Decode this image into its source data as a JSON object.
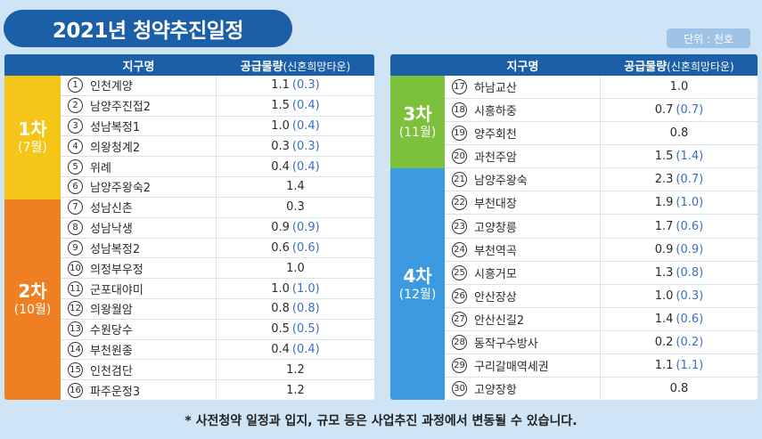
{
  "title": "2021년 청약추진일정",
  "unit_badge": "단위 : 천호",
  "headers": {
    "district": "지구명",
    "supply": "공급물량",
    "supply_note": "(신혼희망타운)"
  },
  "groups": {
    "g1": {
      "label": "1차",
      "month": "(7월)",
      "color": "#f5c518"
    },
    "g2": {
      "label": "2차",
      "month": "(10월)",
      "color": "#f07f24"
    },
    "g3": {
      "label": "3차",
      "month": "(11월)",
      "color": "#7cc13c"
    },
    "g4": {
      "label": "4차",
      "month": "(12월)",
      "color": "#3c9be0"
    }
  },
  "rows": [
    {
      "no": "1",
      "name": "인천계양",
      "supply": "1.1",
      "paren": "(0.3)"
    },
    {
      "no": "2",
      "name": "남양주진접2",
      "supply": "1.5",
      "paren": "(0.4)"
    },
    {
      "no": "3",
      "name": "성남복정1",
      "supply": "1.0",
      "paren": "(0.4)"
    },
    {
      "no": "4",
      "name": "의왕청계2",
      "supply": "0.3",
      "paren": "(0.3)"
    },
    {
      "no": "5",
      "name": "위례",
      "supply": "0.4",
      "paren": "(0.4)"
    },
    {
      "no": "6",
      "name": "남양주왕숙2",
      "supply": "1.4",
      "paren": ""
    },
    {
      "no": "7",
      "name": "성남신촌",
      "supply": "0.3",
      "paren": ""
    },
    {
      "no": "8",
      "name": "성남낙생",
      "supply": "0.9",
      "paren": "(0.9)"
    },
    {
      "no": "9",
      "name": "성남복정2",
      "supply": "0.6",
      "paren": "(0.6)"
    },
    {
      "no": "10",
      "name": "의정부우정",
      "supply": "1.0",
      "paren": ""
    },
    {
      "no": "11",
      "name": "군포대야미",
      "supply": "1.0",
      "paren": "(1.0)"
    },
    {
      "no": "12",
      "name": "의왕월암",
      "supply": "0.8",
      "paren": "(0.8)"
    },
    {
      "no": "13",
      "name": "수원당수",
      "supply": "0.5",
      "paren": "(0.5)"
    },
    {
      "no": "14",
      "name": "부천원종",
      "supply": "0.4",
      "paren": "(0.4)"
    },
    {
      "no": "15",
      "name": "인천검단",
      "supply": "1.2",
      "paren": ""
    },
    {
      "no": "16",
      "name": "파주운정3",
      "supply": "1.2",
      "paren": ""
    },
    {
      "no": "17",
      "name": "하남교산",
      "supply": "1.0",
      "paren": ""
    },
    {
      "no": "18",
      "name": "시흥하중",
      "supply": "0.7",
      "paren": "(0.7)"
    },
    {
      "no": "19",
      "name": "양주회천",
      "supply": "0.8",
      "paren": ""
    },
    {
      "no": "20",
      "name": "과천주암",
      "supply": "1.5",
      "paren": "(1.4)"
    },
    {
      "no": "21",
      "name": "남양주왕숙",
      "supply": "2.3",
      "paren": "(0.7)"
    },
    {
      "no": "22",
      "name": "부천대장",
      "supply": "1.9",
      "paren": "(1.0)"
    },
    {
      "no": "23",
      "name": "고양창릉",
      "supply": "1.7",
      "paren": "(0.6)"
    },
    {
      "no": "24",
      "name": "부천역곡",
      "supply": "0.9",
      "paren": "(0.9)"
    },
    {
      "no": "25",
      "name": "시흥거모",
      "supply": "1.3",
      "paren": "(0.8)"
    },
    {
      "no": "26",
      "name": "안산장상",
      "supply": "1.0",
      "paren": "(0.3)"
    },
    {
      "no": "27",
      "name": "안산신길2",
      "supply": "1.4",
      "paren": "(0.6)"
    },
    {
      "no": "28",
      "name": "동작구수방사",
      "supply": "0.2",
      "paren": "(0.2)"
    },
    {
      "no": "29",
      "name": "구리갈매역세권",
      "supply": "1.1",
      "paren": "(1.1)"
    },
    {
      "no": "30",
      "name": "고양장항",
      "supply": "0.8",
      "paren": ""
    }
  ],
  "footnote": "* 사전청약 일정과 입지, 규모 등은 사업추진 과정에서 변동될 수 있습니다."
}
